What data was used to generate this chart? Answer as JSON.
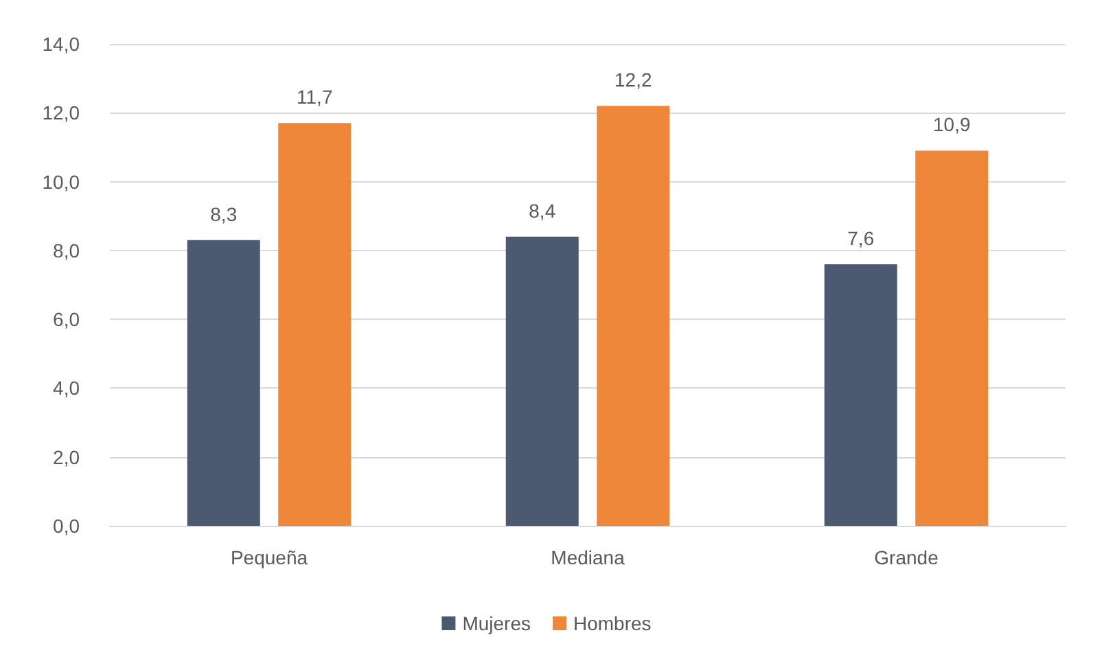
{
  "chart_data": {
    "type": "bar",
    "categories": [
      "Pequeña",
      "Mediana",
      "Grande"
    ],
    "series": [
      {
        "name": "Mujeres",
        "color": "#4b5a70",
        "values": [
          8.3,
          8.4,
          7.6
        ],
        "value_labels": [
          "8,3",
          "8,4",
          "7,6"
        ]
      },
      {
        "name": "Hombres",
        "color": "#ef873a",
        "values": [
          11.7,
          12.2,
          10.9
        ],
        "value_labels": [
          "11,7",
          "12,2",
          "10,9"
        ]
      }
    ],
    "ylim": [
      0,
      14
    ],
    "yticks": [
      {
        "value": 0,
        "label": "0,0"
      },
      {
        "value": 2,
        "label": "2,0"
      },
      {
        "value": 4,
        "label": "4,0"
      },
      {
        "value": 6,
        "label": "6,0"
      },
      {
        "value": 8,
        "label": "8,0"
      },
      {
        "value": 10,
        "label": "10,0"
      },
      {
        "value": 12,
        "label": "12,0"
      },
      {
        "value": 14,
        "label": "14,0"
      }
    ],
    "grid": "y",
    "legend": "bottom"
  }
}
